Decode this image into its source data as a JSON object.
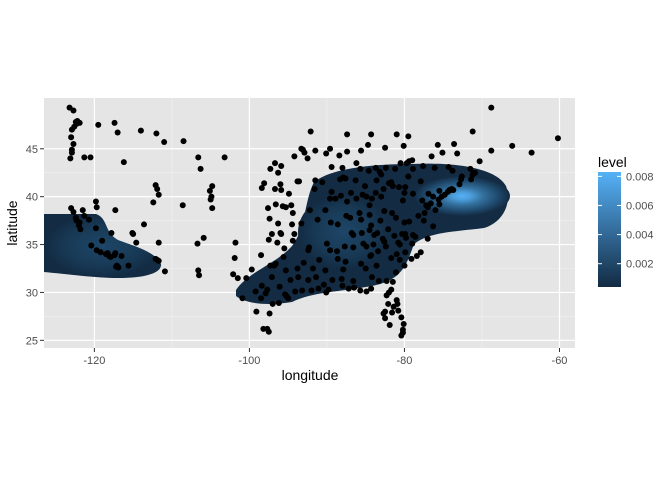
{
  "chart_data": {
    "type": "scatter",
    "title": "",
    "xlabel": "longitude",
    "ylabel": "latitude",
    "xlim": [
      -126.5,
      -58
    ],
    "ylim": [
      24.2,
      50.3
    ],
    "x_ticks": [
      -120,
      -100,
      -80,
      -60
    ],
    "x_tick_labels": [
      "-120",
      "-100",
      "-80",
      "-60"
    ],
    "y_ticks": [
      25,
      30,
      35,
      40,
      45
    ],
    "y_tick_labels": [
      "25",
      "30",
      "35",
      "40",
      "45"
    ],
    "grid": true,
    "background": "#e5e5e5",
    "point_color": "#000000",
    "legend": {
      "title": "level",
      "placement": "right",
      "range": [
        0.0004,
        0.0083
      ],
      "ticks": [
        0.002,
        0.004,
        0.006,
        0.008
      ],
      "tick_labels": [
        "0.002",
        "0.004",
        "0.006",
        "0.008"
      ],
      "color_low": "#132b43",
      "color_high": "#56b1f7"
    },
    "density_regions": [
      {
        "center": [
          -118,
          34.2
        ],
        "level": 0.003
      },
      {
        "center": [
          -84,
          37.0
        ],
        "level": 0.0035
      },
      {
        "center": [
          -74,
          40.6
        ],
        "level": 0.0083
      }
    ],
    "points": [
      [
        -123.2,
        49.3
      ],
      [
        -122.7,
        49.0
      ],
      [
        -122.3,
        47.6
      ],
      [
        -122.6,
        47.3
      ],
      [
        -122.4,
        47.8
      ],
      [
        -122.9,
        47.0
      ],
      [
        -122.2,
        47.9
      ],
      [
        -121.9,
        47.7
      ],
      [
        -123.0,
        46.2
      ],
      [
        -122.7,
        45.5
      ],
      [
        -122.9,
        44.9
      ],
      [
        -123.1,
        44.0
      ],
      [
        -122.9,
        44.6
      ],
      [
        -121.3,
        44.1
      ],
      [
        -120.5,
        44.1
      ],
      [
        -119.5,
        47.5
      ],
      [
        -117.4,
        47.7
      ],
      [
        -117.0,
        46.7
      ],
      [
        -116.2,
        43.6
      ],
      [
        -114.0,
        46.9
      ],
      [
        -111.0,
        45.7
      ],
      [
        -112.0,
        46.6
      ],
      [
        -122.4,
        37.8
      ],
      [
        -122.3,
        37.5
      ],
      [
        -121.9,
        37.3
      ],
      [
        -122.0,
        37.0
      ],
      [
        -121.5,
        38.6
      ],
      [
        -121.3,
        38.0
      ],
      [
        -121.8,
        36.6
      ],
      [
        -122.7,
        38.4
      ],
      [
        -123.0,
        38.8
      ],
      [
        -120.7,
        37.6
      ],
      [
        -119.8,
        36.7
      ],
      [
        -119.0,
        35.4
      ],
      [
        -120.4,
        34.9
      ],
      [
        -119.7,
        34.4
      ],
      [
        -119.2,
        34.2
      ],
      [
        -118.5,
        34.0
      ],
      [
        -118.3,
        34.1
      ],
      [
        -118.1,
        33.8
      ],
      [
        -117.9,
        33.7
      ],
      [
        -117.4,
        33.9
      ],
      [
        -117.3,
        34.1
      ],
      [
        -116.5,
        33.8
      ],
      [
        -117.2,
        32.7
      ],
      [
        -117.1,
        32.8
      ],
      [
        -116.9,
        32.6
      ],
      [
        -115.6,
        32.8
      ],
      [
        -117.8,
        36.2
      ],
      [
        -117.3,
        38.6
      ],
      [
        -119.8,
        39.5
      ],
      [
        -119.7,
        38.9
      ],
      [
        -115.1,
        36.2
      ],
      [
        -115.0,
        36.1
      ],
      [
        -114.6,
        35.2
      ],
      [
        -112.1,
        33.5
      ],
      [
        -111.9,
        33.4
      ],
      [
        -111.7,
        33.3
      ],
      [
        -110.9,
        32.2
      ],
      [
        -111.7,
        35.2
      ],
      [
        -112.1,
        41.2
      ],
      [
        -111.9,
        40.8
      ],
      [
        -111.7,
        40.2
      ],
      [
        -112.4,
        39.4
      ],
      [
        -113.6,
        37.1
      ],
      [
        -108.6,
        39.1
      ],
      [
        -106.7,
        35.1
      ],
      [
        -106.5,
        31.8
      ],
      [
        -106.6,
        32.3
      ],
      [
        -105.9,
        35.7
      ],
      [
        -104.8,
        38.8
      ],
      [
        -105.0,
        39.7
      ],
      [
        -104.9,
        40.0
      ],
      [
        -105.1,
        40.6
      ],
      [
        -104.8,
        41.1
      ],
      [
        -106.3,
        42.9
      ],
      [
        -108.5,
        45.8
      ],
      [
        -106.6,
        44.1
      ],
      [
        -103.2,
        44.1
      ],
      [
        -101.8,
        35.2
      ],
      [
        -101.9,
        33.6
      ],
      [
        -102.1,
        31.9
      ],
      [
        -101.5,
        31.5
      ],
      [
        -100.4,
        31.5
      ],
      [
        -99.7,
        32.4
      ],
      [
        -98.5,
        29.4
      ],
      [
        -98.2,
        26.2
      ],
      [
        -97.7,
        26.2
      ],
      [
        -97.5,
        25.9
      ],
      [
        -97.4,
        27.8
      ],
      [
        -97.7,
        30.3
      ],
      [
        -97.3,
        32.8
      ],
      [
        -96.8,
        32.8
      ],
      [
        -96.6,
        33.0
      ],
      [
        -97.1,
        31.6
      ],
      [
        -95.4,
        29.8
      ],
      [
        -95.2,
        29.6
      ],
      [
        -94.1,
        30.1
      ],
      [
        -93.2,
        30.2
      ],
      [
        -91.1,
        30.4
      ],
      [
        -90.1,
        30.0
      ],
      [
        -89.8,
        30.3
      ],
      [
        -88.0,
        30.7
      ],
      [
        -87.2,
        30.4
      ],
      [
        -86.5,
        30.5
      ],
      [
        -85.7,
        30.2
      ],
      [
        -84.3,
        30.4
      ],
      [
        -82.3,
        29.7
      ],
      [
        -81.7,
        30.3
      ],
      [
        -81.0,
        29.2
      ],
      [
        -81.4,
        28.5
      ],
      [
        -82.5,
        28.0
      ],
      [
        -82.7,
        27.8
      ],
      [
        -82.5,
        27.3
      ],
      [
        -81.9,
        26.6
      ],
      [
        -80.1,
        26.7
      ],
      [
        -80.2,
        26.1
      ],
      [
        -80.2,
        25.8
      ],
      [
        -80.4,
        25.5
      ],
      [
        -80.8,
        28.1
      ],
      [
        -99.1,
        28.0
      ],
      [
        -98.5,
        33.9
      ],
      [
        -97.5,
        35.5
      ],
      [
        -97.4,
        37.7
      ],
      [
        -96.0,
        36.2
      ],
      [
        -95.9,
        36.1
      ],
      [
        -94.6,
        39.1
      ],
      [
        -94.5,
        37.1
      ],
      [
        -93.3,
        37.2
      ],
      [
        -95.7,
        39.0
      ],
      [
        -96.7,
        40.8
      ],
      [
        -96.0,
        41.3
      ],
      [
        -97.3,
        42.9
      ],
      [
        -96.7,
        43.5
      ],
      [
        -93.6,
        41.6
      ],
      [
        -91.5,
        41.7
      ],
      [
        -92.1,
        46.8
      ],
      [
        -93.3,
        45.0
      ],
      [
        -93.1,
        44.9
      ],
      [
        -92.5,
        44.0
      ],
      [
        -90.2,
        38.6
      ],
      [
        -92.3,
        34.7
      ],
      [
        -94.2,
        36.1
      ],
      [
        -90.0,
        35.1
      ],
      [
        -90.2,
        32.3
      ],
      [
        -88.6,
        33.5
      ],
      [
        -89.4,
        43.1
      ],
      [
        -88.0,
        43.0
      ],
      [
        -87.6,
        41.9
      ],
      [
        -87.9,
        42.0
      ],
      [
        -88.3,
        41.8
      ],
      [
        -89.6,
        39.8
      ],
      [
        -88.2,
        40.1
      ],
      [
        -86.2,
        39.8
      ],
      [
        -85.1,
        41.1
      ],
      [
        -86.3,
        41.7
      ],
      [
        -87.5,
        38.0
      ],
      [
        -85.8,
        38.3
      ],
      [
        -84.5,
        38.1
      ],
      [
        -86.8,
        36.2
      ],
      [
        -85.3,
        35.1
      ],
      [
        -83.9,
        36.0
      ],
      [
        -84.4,
        33.8
      ],
      [
        -84.3,
        33.9
      ],
      [
        -83.6,
        32.8
      ],
      [
        -81.1,
        32.1
      ],
      [
        -81.0,
        34.0
      ],
      [
        -80.8,
        35.2
      ],
      [
        -80.0,
        32.8
      ],
      [
        -79.9,
        34.2
      ],
      [
        -78.9,
        36.0
      ],
      [
        -78.6,
        35.8
      ],
      [
        -77.0,
        35.6
      ],
      [
        -79.9,
        36.1
      ],
      [
        -80.3,
        36.1
      ],
      [
        -80.0,
        37.3
      ],
      [
        -77.5,
        37.5
      ],
      [
        -76.3,
        36.9
      ],
      [
        -77.0,
        38.9
      ],
      [
        -77.2,
        39.1
      ],
      [
        -76.6,
        39.3
      ],
      [
        -75.2,
        40.0
      ],
      [
        -75.5,
        40.6
      ],
      [
        -76.9,
        40.3
      ],
      [
        -80.0,
        40.4
      ],
      [
        -81.7,
        41.5
      ],
      [
        -81.5,
        41.1
      ],
      [
        -83.0,
        40.0
      ],
      [
        -84.2,
        39.8
      ],
      [
        -84.5,
        39.1
      ],
      [
        -83.6,
        41.7
      ],
      [
        -83.0,
        42.3
      ],
      [
        -83.2,
        42.6
      ],
      [
        -84.6,
        42.7
      ],
      [
        -85.7,
        42.9
      ],
      [
        -83.7,
        43.0
      ],
      [
        -82.4,
        43.0
      ],
      [
        -79.4,
        43.7
      ],
      [
        -79.7,
        43.5
      ],
      [
        -78.9,
        42.9
      ],
      [
        -77.6,
        43.2
      ],
      [
        -76.1,
        43.0
      ],
      [
        -73.8,
        42.7
      ],
      [
        -73.9,
        40.8
      ],
      [
        -74.0,
        40.7
      ],
      [
        -73.7,
        40.7
      ],
      [
        -74.2,
        40.7
      ],
      [
        -74.4,
        40.5
      ],
      [
        -74.8,
        40.2
      ],
      [
        -72.9,
        41.3
      ],
      [
        -72.7,
        41.8
      ],
      [
        -71.4,
        41.8
      ],
      [
        -71.1,
        42.4
      ],
      [
        -71.2,
        42.3
      ],
      [
        -70.9,
        42.5
      ],
      [
        -71.5,
        42.9
      ],
      [
        -72.6,
        42.1
      ],
      [
        -73.2,
        44.5
      ],
      [
        -70.3,
        43.7
      ],
      [
        -68.8,
        44.8
      ],
      [
        -71.2,
        46.8
      ],
      [
        -73.6,
        45.5
      ],
      [
        -75.7,
        45.4
      ],
      [
        -63.6,
        44.6
      ],
      [
        -60.2,
        46.1
      ],
      [
        -66.1,
        45.3
      ],
      [
        -68.8,
        49.3
      ],
      [
        -81.2,
        42.9
      ],
      [
        -80.5,
        43.5
      ],
      [
        -79.0,
        43.8
      ],
      [
        -76.5,
        44.2
      ],
      [
        -75.1,
        44.6
      ],
      [
        -74.3,
        43.1
      ],
      [
        -77.9,
        41.6
      ],
      [
        -79.5,
        42.1
      ],
      [
        -80.2,
        39.6
      ],
      [
        -81.6,
        38.3
      ],
      [
        -82.1,
        36.6
      ],
      [
        -84.0,
        35.0
      ],
      [
        -86.6,
        34.7
      ],
      [
        -87.6,
        33.2
      ],
      [
        -88.1,
        31.4
      ],
      [
        -89.3,
        31.3
      ],
      [
        -91.8,
        32.5
      ],
      [
        -93.8,
        32.5
      ],
      [
        -92.0,
        30.2
      ],
      [
        -94.7,
        31.3
      ],
      [
        -95.6,
        33.7
      ],
      [
        -95.3,
        32.3
      ],
      [
        -96.1,
        30.6
      ],
      [
        -97.9,
        29.9
      ],
      [
        -98.4,
        30.7
      ],
      [
        -99.2,
        30.1
      ],
      [
        -100.9,
        29.4
      ],
      [
        -97.0,
        28.8
      ],
      [
        -96.2,
        28.9
      ],
      [
        -95.0,
        29.4
      ],
      [
        -93.7,
        31.6
      ],
      [
        -91.0,
        33.4
      ],
      [
        -89.6,
        34.4
      ],
      [
        -88.7,
        34.3
      ],
      [
        -87.7,
        34.8
      ],
      [
        -86.6,
        36.0
      ],
      [
        -85.5,
        36.2
      ],
      [
        -84.3,
        37.0
      ],
      [
        -83.1,
        37.5
      ],
      [
        -82.6,
        38.5
      ],
      [
        -81.1,
        37.8
      ],
      [
        -79.4,
        37.4
      ],
      [
        -78.2,
        38.0
      ],
      [
        -77.4,
        38.3
      ],
      [
        -76.0,
        38.6
      ],
      [
        -75.5,
        39.2
      ],
      [
        -75.6,
        39.7
      ],
      [
        -76.3,
        40.0
      ],
      [
        -77.7,
        39.6
      ],
      [
        -78.9,
        40.3
      ],
      [
        -79.9,
        41.0
      ],
      [
        -80.7,
        41.0
      ],
      [
        -82.0,
        41.4
      ],
      [
        -82.7,
        40.8
      ],
      [
        -83.7,
        40.4
      ],
      [
        -84.9,
        40.0
      ],
      [
        -85.4,
        40.2
      ],
      [
        -86.9,
        40.4
      ],
      [
        -87.4,
        39.5
      ],
      [
        -88.9,
        39.8
      ],
      [
        -89.4,
        40.5
      ],
      [
        -90.6,
        41.5
      ],
      [
        -91.6,
        40.8
      ],
      [
        -93.8,
        41.6
      ],
      [
        -94.9,
        40.3
      ],
      [
        -95.9,
        40.7
      ],
      [
        -95.3,
        38.9
      ],
      [
        -94.4,
        38.3
      ],
      [
        -92.2,
        38.6
      ],
      [
        -91.2,
        37.6
      ],
      [
        -89.5,
        37.3
      ],
      [
        -88.6,
        37.1
      ],
      [
        -87.0,
        37.8
      ],
      [
        -85.6,
        37.6
      ],
      [
        -84.5,
        36.5
      ],
      [
        -83.5,
        36.2
      ],
      [
        -82.8,
        35.6
      ],
      [
        -82.6,
        35.3
      ],
      [
        -81.3,
        35.9
      ],
      [
        -80.6,
        35.0
      ],
      [
        -79.8,
        35.7
      ],
      [
        -79.0,
        35.1
      ],
      [
        -77.9,
        34.2
      ],
      [
        -78.4,
        33.8
      ],
      [
        -79.1,
        33.5
      ],
      [
        -80.6,
        33.4
      ],
      [
        -81.7,
        33.6
      ],
      [
        -82.4,
        34.8
      ],
      [
        -83.4,
        34.3
      ],
      [
        -84.9,
        34.8
      ],
      [
        -85.6,
        33.0
      ],
      [
        -85.0,
        32.5
      ],
      [
        -84.2,
        31.6
      ],
      [
        -83.3,
        31.2
      ],
      [
        -82.3,
        31.2
      ],
      [
        -81.5,
        31.1
      ],
      [
        -80.9,
        28.8
      ],
      [
        -82.1,
        28.8
      ],
      [
        -81.6,
        27.9
      ],
      [
        -80.4,
        27.4
      ],
      [
        -82.0,
        30.0
      ],
      [
        -84.9,
        30.1
      ],
      [
        -86.6,
        31.2
      ],
      [
        -87.9,
        32.4
      ],
      [
        -90.4,
        30.8
      ],
      [
        -91.4,
        31.6
      ],
      [
        -92.4,
        31.3
      ],
      [
        -93.0,
        33.1
      ],
      [
        -92.4,
        34.4
      ],
      [
        -94.4,
        35.4
      ],
      [
        -95.5,
        34.6
      ],
      [
        -96.4,
        35.2
      ],
      [
        -97.1,
        36.1
      ],
      [
        -96.3,
        37.2
      ],
      [
        -97.6,
        38.8
      ],
      [
        -96.6,
        39.2
      ],
      [
        -98.4,
        40.9
      ],
      [
        -98.1,
        41.4
      ],
      [
        -96.3,
        42.5
      ],
      [
        -95.9,
        43.2
      ],
      [
        -94.2,
        44.2
      ],
      [
        -92.9,
        44.6
      ],
      [
        -91.5,
        44.8
      ],
      [
        -90.1,
        44.5
      ],
      [
        -89.6,
        45.0
      ],
      [
        -88.4,
        44.3
      ],
      [
        -87.4,
        44.7
      ],
      [
        -85.6,
        44.8
      ],
      [
        -84.7,
        45.4
      ],
      [
        -86.2,
        43.5
      ],
      [
        -82.5,
        45.1
      ],
      [
        -80.1,
        45.3
      ],
      [
        -79.5,
        46.3
      ],
      [
        -81.0,
        46.5
      ],
      [
        -84.3,
        46.5
      ],
      [
        -87.4,
        46.5
      ]
    ]
  }
}
